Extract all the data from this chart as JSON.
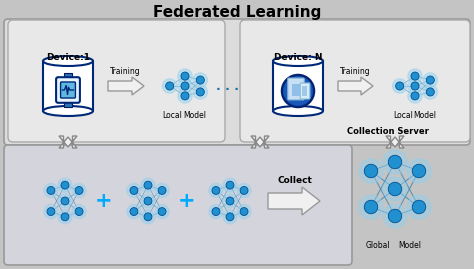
{
  "title": "Federated Learning",
  "title_fontsize": 11,
  "title_fontweight": "bold",
  "bg_outer": "#c8c8c8",
  "bg_top": "#e0e0e0",
  "bg_bottom": "#d0d0d8",
  "node_color": "#2090d0",
  "node_edge": "#005090",
  "node_glow": "#90d0f0",
  "line_color": "#3080b0",
  "text_color": "#000000",
  "plus_color": "#00aaff",
  "device1_label": "Device:1",
  "deviceN_label": "Device: N",
  "local_label": "Local",
  "model_label": "Model",
  "global_label": "Global",
  "training_label": "Training",
  "collect_label": "Collect",
  "collection_server_label": "Collection Server",
  "fig_width": 4.74,
  "fig_height": 2.69,
  "dpi": 100
}
